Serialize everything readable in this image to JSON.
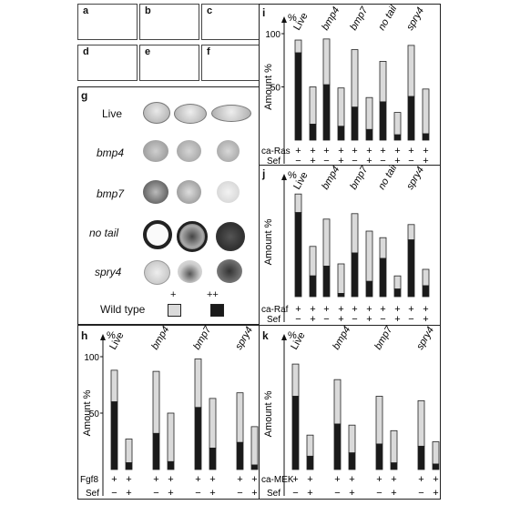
{
  "panels": {
    "embryo_photos": [
      "a",
      "b",
      "c",
      "d",
      "e",
      "f"
    ],
    "g": {
      "letter": "g",
      "rows": [
        "Live",
        "bmp4",
        "bmp7",
        "no tail",
        "spry4"
      ],
      "legend": {
        "title": "Wild type",
        "plus": "+",
        "plusplus": "++"
      }
    },
    "i": {
      "letter": "i",
      "condition": "ca-Ras",
      "inhibitor": "Sef"
    },
    "j": {
      "letter": "j",
      "condition": "ca-Raf",
      "inhibitor": "Sef"
    },
    "h": {
      "letter": "h",
      "condition": "Fgf8",
      "inhibitor": "Sef"
    },
    "k": {
      "letter": "k",
      "condition": "ca-MEK",
      "inhibitor": "Sef"
    }
  },
  "chart_data": [
    {
      "id": "i",
      "type": "bar",
      "ylabel": "Amount %",
      "yunit": "%",
      "ylim": [
        0,
        100
      ],
      "yticks": [
        50,
        100
      ],
      "categories": [
        "Live",
        "bmp4",
        "bmp7",
        "no tail",
        "spry4"
      ],
      "row_labels": [
        "ca-Ras",
        "Sef"
      ],
      "row1": [
        "+",
        "+"
      ],
      "row2": [
        "−",
        "+"
      ],
      "series": [
        {
          "name": "+",
          "values": [
            [
              12,
              35
            ],
            [
              43,
              36
            ],
            [
              54,
              30
            ],
            [
              38,
              21
            ],
            [
              48,
              42
            ]
          ]
        },
        {
          "name": "++",
          "values": [
            [
              82,
              15
            ],
            [
              52,
              13
            ],
            [
              31,
              10
            ],
            [
              36,
              5
            ],
            [
              41,
              6
            ]
          ]
        }
      ]
    },
    {
      "id": "j",
      "type": "bar",
      "ylabel": "Amount %",
      "yunit": "%",
      "ylim": [
        0,
        100
      ],
      "yticks": [],
      "categories": [
        "Live",
        "bmp4",
        "bmp7",
        "no tail",
        "spry4"
      ],
      "row_labels": [
        "ca-Raf",
        "Sef"
      ],
      "row1": [
        "+",
        "+"
      ],
      "row2": [
        "−",
        "+"
      ],
      "series": [
        {
          "name": "+",
          "values": [
            [
              17,
              27
            ],
            [
              43,
              27
            ],
            [
              36,
              46
            ],
            [
              19,
              12
            ],
            [
              14,
              15
            ]
          ]
        },
        {
          "name": "++",
          "values": [
            [
              77,
              19
            ],
            [
              28,
              3
            ],
            [
              40,
              14
            ],
            [
              35,
              7
            ],
            [
              52,
              10
            ]
          ]
        }
      ]
    },
    {
      "id": "h",
      "type": "bar",
      "ylabel": "Amount %",
      "yunit": "%",
      "ylim": [
        0,
        100
      ],
      "yticks": [
        50,
        100
      ],
      "categories": [
        "Live",
        "bmp4",
        "bmp7",
        "spry4"
      ],
      "row_labels": [
        "Fgf8",
        "Sef"
      ],
      "row1": [
        "+",
        "+"
      ],
      "row2": [
        "−",
        "+"
      ],
      "series": [
        {
          "name": "+",
          "values": [
            [
              28,
              21
            ],
            [
              55,
              43
            ],
            [
              43,
              44
            ],
            [
              44,
              34
            ]
          ]
        },
        {
          "name": "++",
          "values": [
            [
              60,
              6
            ],
            [
              32,
              7
            ],
            [
              55,
              19
            ],
            [
              24,
              4
            ]
          ]
        }
      ]
    },
    {
      "id": "k",
      "type": "bar",
      "ylabel": "Amount %",
      "yunit": "%",
      "ylim": [
        0,
        100
      ],
      "yticks": [],
      "categories": [
        "Live",
        "bmp4",
        "bmp7",
        "spry4"
      ],
      "row_labels": [
        "ca-MEK",
        "Sef"
      ],
      "row1": [
        "+",
        "+"
      ],
      "row2": [
        "−",
        "+"
      ],
      "series": [
        {
          "name": "+",
          "values": [
            [
              29,
              19
            ],
            [
              40,
              25
            ],
            [
              43,
              29
            ],
            [
              41,
              20
            ]
          ]
        },
        {
          "name": "++",
          "values": [
            [
              66,
              12
            ],
            [
              41,
              15
            ],
            [
              23,
              6
            ],
            [
              21,
              5
            ]
          ]
        }
      ]
    }
  ]
}
